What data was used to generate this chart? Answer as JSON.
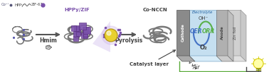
{
  "background_color": "#ffffff",
  "figsize": [
    3.78,
    1.02
  ],
  "dpi": 100,
  "labels": {
    "co2plus": "Co²⁺",
    "hppy": "HPPy",
    "zif67": "ZIF-67",
    "hmim_arrow": "Hmim",
    "hppyzif": "HPPy/ZIF",
    "pyrolysis": "Pyrolysis",
    "concch": "Co-NCCN",
    "catalyst_layer": "Catalyst layer",
    "air": "Air",
    "o2": "O₂",
    "oer": "OER",
    "orr": "ORR",
    "oh": "OH⁻",
    "electrolyte": "Electrolyte",
    "cathode": "Cathode",
    "anode": "Anode",
    "zn_foil": "Zn foil"
  },
  "colors": {
    "purple": "#7b52ab",
    "gray_nanotube": "#888888",
    "dark_gray": "#404040",
    "mid_gray": "#999999",
    "light_gray": "#cccccc",
    "cathode_front": "#8a8a8a",
    "cathode_top": "#aaaaaa",
    "electrolyte_front": "#c5dff0",
    "electrolyte_top": "#d8ecf8",
    "anode_front": "#b0b0b0",
    "anode_top": "#cccccc",
    "anode_side": "#c0c0c0",
    "oer_blue": "#4472c4",
    "orr_green": "#5ab04a",
    "wire_green": "#5aaa3a",
    "bulb_yellow": "#ffffaa",
    "bulb_edge": "#ddcc00",
    "sphere_yellow": "#e8d030",
    "sphere_glow": "#d0b8e8",
    "dot_blue": "#5555aa",
    "arrow_dark": "#555555"
  }
}
